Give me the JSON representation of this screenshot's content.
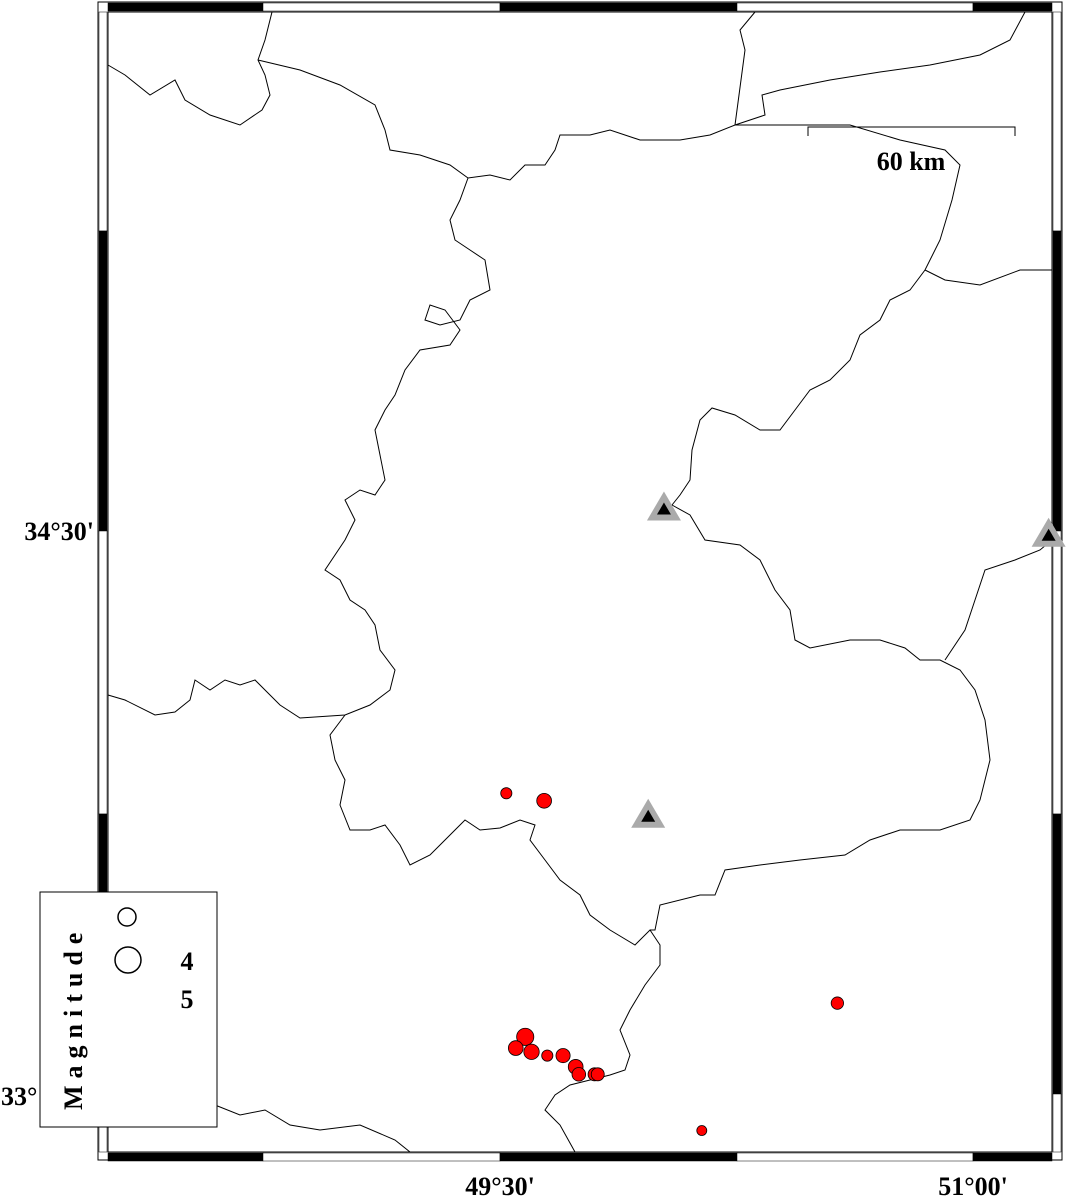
{
  "map": {
    "extent": {
      "lon_min": 48.24,
      "lon_max": 51.25,
      "lat_min": 32.87,
      "lat_max": 35.91
    },
    "x_tick_labels": [
      {
        "lon": 49.5,
        "label": "49°30'"
      },
      {
        "lon": 51.0,
        "label": "51°00'"
      }
    ],
    "y_tick_labels": [
      {
        "lat": 34.5,
        "label": "34°30'"
      },
      {
        "lat": 33.0,
        "label": "33°"
      }
    ],
    "scale_bar": {
      "label": "60 km",
      "length_km": 60
    },
    "colors": {
      "event": "#ff0000",
      "station_outer": "#aaaaaa",
      "station_inner": "#000000",
      "border": "#000000"
    },
    "events": [
      {
        "lon": 49.52,
        "lat": 33.8,
        "mag": 4.0
      },
      {
        "lon": 49.64,
        "lat": 33.78,
        "mag": 4.6
      },
      {
        "lon": 49.58,
        "lat": 33.15,
        "mag": 5.0
      },
      {
        "lon": 49.55,
        "lat": 33.12,
        "mag": 4.6
      },
      {
        "lon": 49.6,
        "lat": 33.11,
        "mag": 4.7
      },
      {
        "lon": 49.65,
        "lat": 33.1,
        "mag": 4.0
      },
      {
        "lon": 49.7,
        "lat": 33.1,
        "mag": 4.5
      },
      {
        "lon": 49.74,
        "lat": 33.07,
        "mag": 4.6
      },
      {
        "lon": 49.75,
        "lat": 33.05,
        "mag": 4.4
      },
      {
        "lon": 49.8,
        "lat": 33.05,
        "mag": 4.3
      },
      {
        "lon": 49.81,
        "lat": 33.05,
        "mag": 4.3
      },
      {
        "lon": 50.57,
        "lat": 33.24,
        "mag": 4.2
      },
      {
        "lon": 50.14,
        "lat": 32.9,
        "mag": 3.8
      }
    ],
    "stations": [
      {
        "lon": 50.02,
        "lat": 34.56
      },
      {
        "lon": 49.97,
        "lat": 33.74
      },
      {
        "lon": 51.24,
        "lat": 34.49
      }
    ]
  },
  "legend": {
    "title": "Magnitude",
    "entries": [
      {
        "mag": 4,
        "label": "4"
      },
      {
        "mag": 5,
        "label": "5"
      }
    ]
  }
}
